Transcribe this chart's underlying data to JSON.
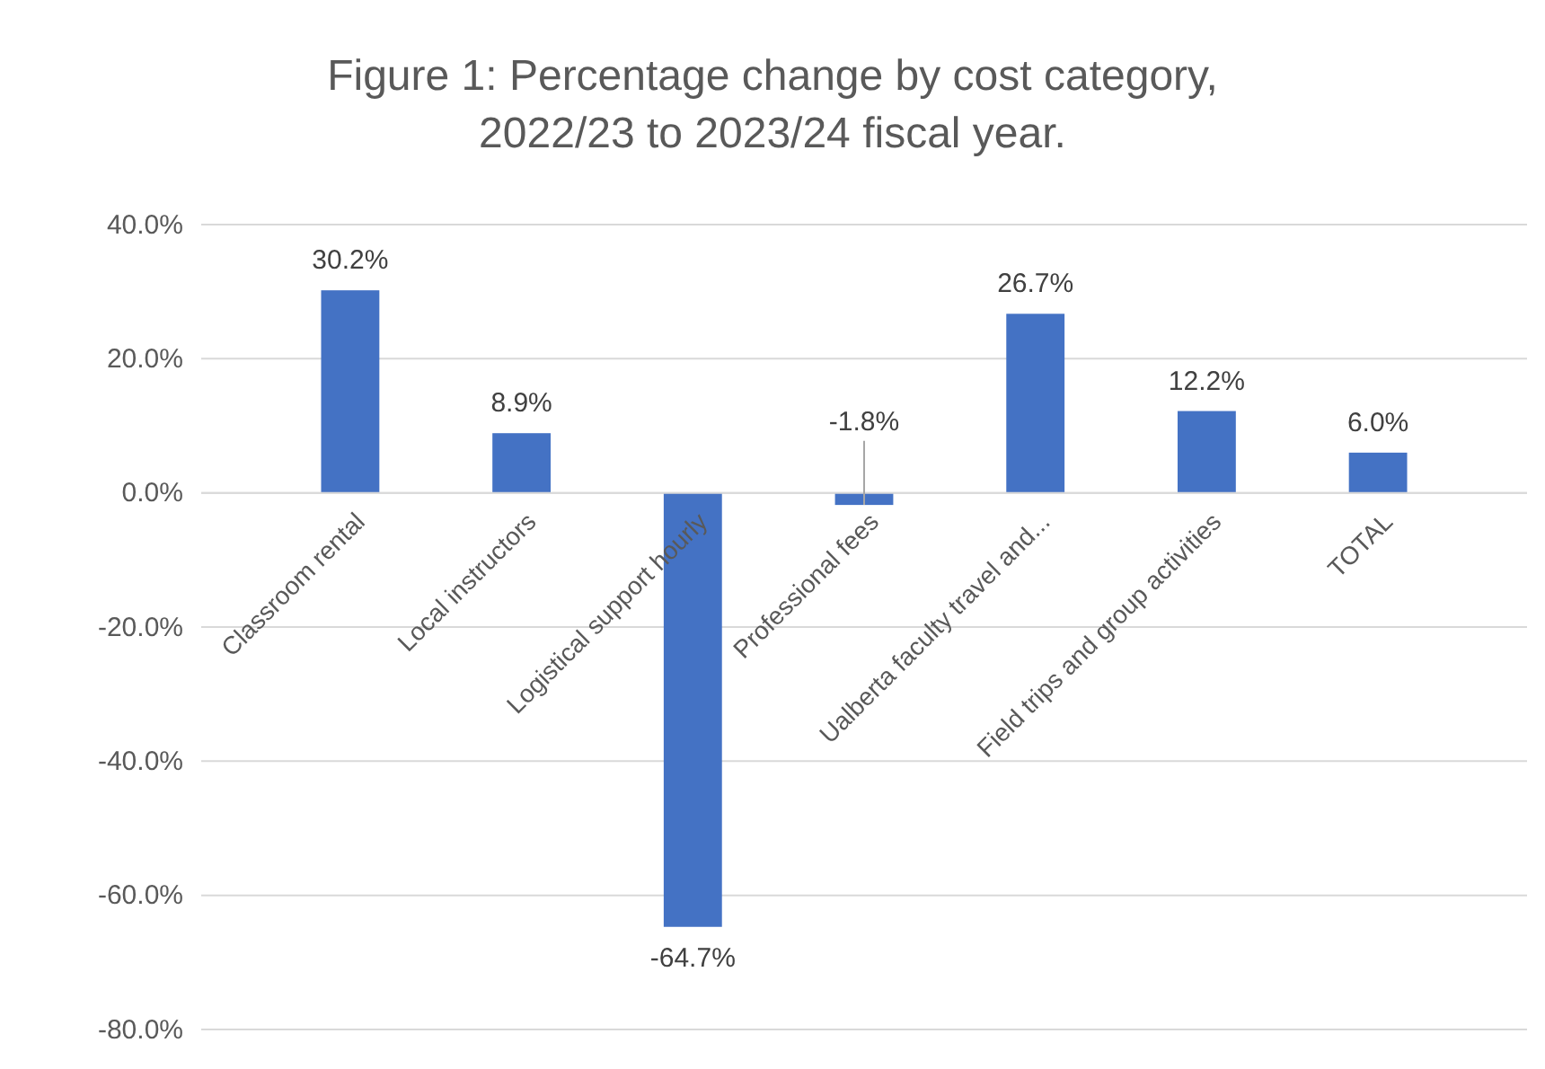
{
  "chart_data": {
    "type": "bar",
    "title": "Figure 1: Percentage change by cost category, 2022/23 to 2023/24 fiscal year.",
    "categories": [
      "Classroom rental",
      "Local instructors",
      "Logistical support hourly",
      "Professional fees",
      "Ualberta faculty travel and...",
      "Field trips and group activities",
      "TOTAL"
    ],
    "values": [
      30.2,
      8.9,
      -64.7,
      -1.8,
      26.7,
      12.2,
      6.0
    ],
    "value_labels": [
      "30.2%",
      "8.9%",
      "-64.7%",
      "-1.8%",
      "26.7%",
      "12.2%",
      "6.0%"
    ],
    "color": "#4472c4",
    "ylim": [
      -80,
      40
    ],
    "yticks": [
      {
        "value": -80,
        "label": "-80.0%"
      },
      {
        "value": -60,
        "label": "-60.0%"
      },
      {
        "value": -40,
        "label": "-40.0%"
      },
      {
        "value": -20,
        "label": "-20.0%"
      },
      {
        "value": 0,
        "label": "0.0%"
      },
      {
        "value": 20,
        "label": "20.0%"
      },
      {
        "value": 40,
        "label": "40.0%"
      }
    ],
    "grid": "y"
  }
}
